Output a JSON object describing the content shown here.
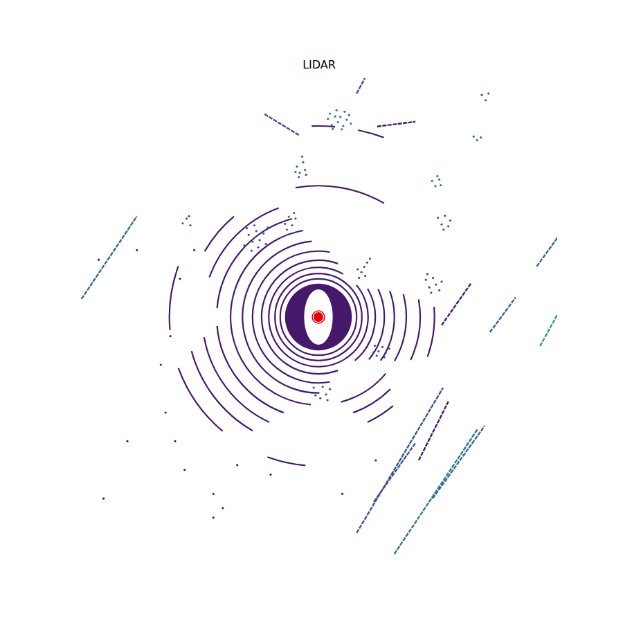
{
  "chart_data": {
    "type": "scatter",
    "title": "LIDAR",
    "xlim": [
      -50,
      50
    ],
    "ylim": [
      -50,
      50
    ],
    "tick_labels": false,
    "disc": {
      "radius": 7,
      "color": "#46186c"
    },
    "ego": {
      "half_width": 3,
      "half_length": 5.8,
      "marker_radii": [
        1.3,
        0.9
      ],
      "color": "#e8000b"
    },
    "rings": [
      {
        "radius": 8.0,
        "arcs": [
          [
            0,
            360
          ]
        ],
        "color": "#46186c"
      },
      {
        "radius": 9.1,
        "arcs": [
          [
            0,
            360
          ]
        ],
        "color": "#46186c"
      },
      {
        "radius": 10.4,
        "arcs": [
          [
            -60,
            40
          ],
          [
            60,
            300
          ]
        ],
        "color": "#46186c"
      },
      {
        "radius": 11.9,
        "arcs": [
          [
            -50,
            30
          ],
          [
            70,
            290
          ]
        ],
        "color": "#46186c"
      },
      {
        "radius": 13.8,
        "arcs": [
          [
            -40,
            25
          ],
          [
            80,
            280
          ]
        ],
        "color": "#46186c"
      },
      {
        "radius": 15.9,
        "arcs": [
          [
            -35,
            20
          ],
          [
            95,
            270
          ]
        ],
        "color": "#46186c"
      },
      {
        "radius": 18.4,
        "arcs": [
          [
            -30,
            15
          ],
          [
            100,
            265
          ],
          [
            285,
            320
          ]
        ],
        "color": "#46186c"
      },
      {
        "radius": 21.3,
        "arcs": [
          [
            -25,
            10
          ],
          [
            105,
            175
          ],
          [
            185,
            250
          ],
          [
            290,
            315
          ]
        ],
        "color": "#46186c"
      },
      {
        "radius": 24.3,
        "arcs": [
          [
            -20,
            5
          ],
          [
            110,
            160
          ],
          [
            190,
            245
          ],
          [
            295,
            310
          ]
        ],
        "color": "#46186c"
      },
      {
        "radius": 27.5,
        "arcs": [
          [
            60,
            100
          ],
          [
            130,
            150
          ],
          [
            195,
            240
          ]
        ],
        "color": "#46186c"
      },
      {
        "radius": 31.2,
        "arcs": [
          [
            160,
            185
          ],
          [
            200,
            230
          ],
          [
            250,
            265
          ]
        ],
        "color": "#46186c"
      },
      {
        "radius": 40.0,
        "arcs": [
          [
            70,
            78
          ],
          [
            85,
            92
          ]
        ],
        "color": "#46186c"
      }
    ],
    "segments": [
      {
        "x": [
          -49.6,
          -38.0
        ],
        "y": [
          3.8,
          21.1
        ],
        "color": "#31688e"
      },
      {
        "x": [
          -11.3,
          -4.1
        ],
        "y": [
          42.5,
          38.1
        ],
        "color": "#3b528b"
      },
      {
        "x": [
          8.0,
          10.1
        ],
        "y": [
          46.8,
          50.7
        ],
        "color": "#3b528b"
      },
      {
        "x": [
          12.3,
          20.3
        ],
        "y": [
          39.9,
          40.9
        ],
        "color": "#46186c"
      },
      {
        "x": [
          45.7,
          50.4
        ],
        "y": [
          10.6,
          17.1
        ],
        "color": "#31688e"
      },
      {
        "x": [
          35.9,
          41.3
        ],
        "y": [
          -3.2,
          4.1
        ],
        "color": "#31688e"
      },
      {
        "x": [
          46.4,
          50.4
        ],
        "y": [
          -6.1,
          1.2
        ],
        "color": "#2a9a8a"
      },
      {
        "x": [
          8.0,
          26.1
        ],
        "y": [
          -45.2,
          -14.8
        ],
        "color": "#3b528b"
      },
      {
        "x": [
          21.0,
          27.2
        ],
        "y": [
          -30.0,
          -17.7
        ],
        "color": "#46186c"
      },
      {
        "x": [
          15.9,
          33.3
        ],
        "y": [
          -49.6,
          -23.5
        ],
        "color": "#2a788e"
      },
      {
        "x": [
          23.9,
          34.8
        ],
        "y": [
          -38.0,
          -22.8
        ],
        "color": "#31688e"
      },
      {
        "x": [
          11.6,
          20.3
        ],
        "y": [
          -38.7,
          -26.4
        ],
        "color": "#3b528b"
      },
      {
        "x": [
          31.9,
          25.8
        ],
        "y": [
          7.0,
          -1.7
        ],
        "color": "#46186c"
      }
    ],
    "clusters": [
      {
        "x": [
          2.0,
          2.8,
          3.5,
          4.1,
          4.6,
          5.2,
          5.9,
          6.4,
          3.0,
          4.9,
          6.8,
          2.4,
          5.5,
          3.8
        ],
        "y": [
          41.5,
          40.2,
          42.0,
          40.8,
          41.9,
          40.0,
          41.3,
          42.3,
          39.4,
          39.3,
          40.5,
          42.6,
          43.0,
          43.3
        ],
        "color": "#2a788e"
      },
      {
        "x": [
          -4.5,
          -3.9,
          -3.2,
          -2.8,
          -4.1,
          -3.4,
          -2.6,
          -4.8
        ],
        "y": [
          31.5,
          30.2,
          32.4,
          30.8,
          29.3,
          33.6,
          29.8,
          30.4
        ],
        "color": "#33638d"
      },
      {
        "x": [
          -15.5,
          -14.6,
          -13.8,
          -13.0,
          -12.3,
          -11.5,
          -14.0,
          -12.6,
          -15.0,
          -11.0,
          -13.4,
          -10.6
        ],
        "y": [
          15.0,
          17.2,
          15.8,
          18.0,
          16.1,
          17.5,
          13.9,
          14.6,
          18.6,
          15.3,
          19.2,
          18.7
        ],
        "color": "#3b528b"
      },
      {
        "x": [
          -7.0,
          -6.2,
          -5.5,
          -4.8,
          -6.6,
          -5.1
        ],
        "y": [
          19.5,
          21.0,
          19.2,
          20.6,
          18.3,
          21.8
        ],
        "color": "#33638d"
      },
      {
        "x": [
          22.5,
          23.2,
          24.0,
          24.6,
          25.3,
          23.6,
          25.8,
          22.8
        ],
        "y": [
          7.8,
          6.2,
          8.2,
          6.8,
          5.6,
          5.1,
          7.4,
          9.0
        ],
        "color": "#3b528b"
      },
      {
        "x": [
          25.0,
          25.8,
          26.5,
          27.2,
          26.2,
          27.6
        ],
        "y": [
          20.8,
          19.4,
          21.2,
          19.0,
          18.3,
          20.2
        ],
        "color": "#3b528b"
      },
      {
        "x": [
          23.8,
          24.5,
          25.3,
          24.9,
          25.6
        ],
        "y": [
          28.5,
          27.4,
          28.8,
          29.5,
          27.6
        ],
        "color": "#2a788e"
      },
      {
        "x": [
          11.8,
          12.6,
          13.4,
          14.1,
          12.2,
          13.8,
          14.8,
          11.5
        ],
        "y": [
          -6.0,
          -7.2,
          -6.3,
          -7.5,
          -8.1,
          -8.4,
          -6.6,
          -7.4
        ],
        "color": "#3b528b"
      },
      {
        "x": [
          -1.0,
          0.0,
          0.9,
          1.6,
          2.4,
          0.4,
          -0.6,
          1.9
        ],
        "y": [
          -14.8,
          -15.9,
          -14.6,
          -16.2,
          -15.1,
          -17.0,
          -16.4,
          -17.4
        ],
        "color": "#3b528b"
      },
      {
        "x": [
          8.5,
          9.0,
          9.6,
          10.2,
          10.8,
          8.2,
          9.8
        ],
        "y": [
          8.2,
          9.4,
          10.5,
          11.4,
          12.2,
          10.0,
          8.6
        ],
        "color": "#3b528b"
      },
      {
        "x": [
          -28.4,
          -27.6,
          -26.8,
          -27.1
        ],
        "y": [
          19.6,
          20.6,
          19.2,
          21.1
        ],
        "color": "#3b528b"
      },
      {
        "x": [
          32.5,
          33.2,
          34.0
        ],
        "y": [
          37.8,
          37.0,
          37.6
        ],
        "color": "#2a788e"
      },
      {
        "x": [
          34.2,
          35.0,
          35.6
        ],
        "y": [
          46.5,
          45.4,
          46.8
        ],
        "color": "#3b528b"
      },
      {
        "x": [
          -32,
          -30,
          -28,
          -33,
          -31,
          -29,
          -26,
          -22,
          -17,
          -10,
          5,
          12,
          -45,
          -22,
          -20,
          -40,
          -46,
          -38
        ],
        "y": [
          -20,
          -26,
          -32,
          -10,
          -4,
          8,
          14,
          -37,
          -31,
          -33,
          -37,
          -30,
          -38,
          -42,
          -40,
          -26,
          12,
          14
        ],
        "color": "#46186c"
      }
    ]
  }
}
